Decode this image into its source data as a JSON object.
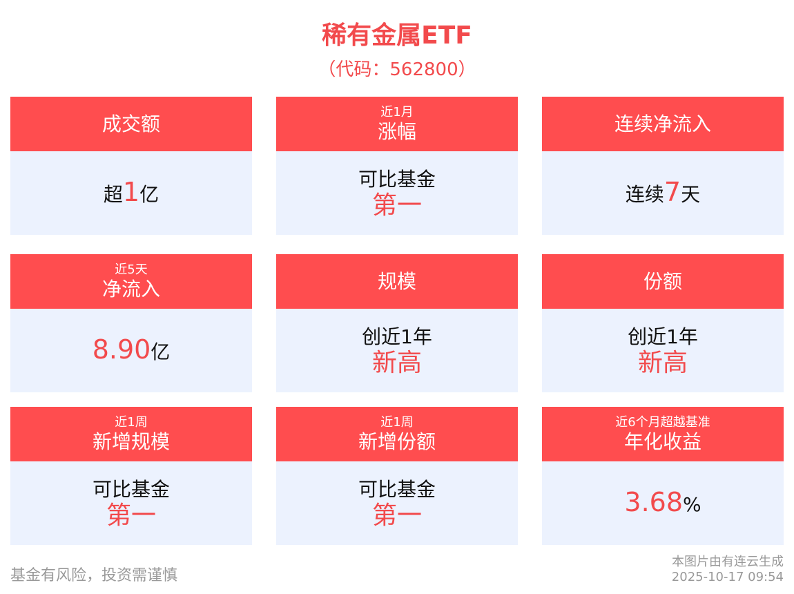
{
  "header": {
    "title": "稀有金属ETF",
    "code": "（代码：562800）"
  },
  "colors": {
    "accent": "#ff4d4f",
    "panel": "#ecf2fe",
    "highlight": "#f24a4c"
  },
  "cards": [
    {
      "sub": "",
      "title": "成交额",
      "pre": "超",
      "num": "1",
      "post": "亿",
      "line1": "",
      "line2": ""
    },
    {
      "sub": "近1月",
      "title": "涨幅",
      "pre": "",
      "num": "",
      "post": "",
      "line1": "可比基金",
      "line2": "第一"
    },
    {
      "sub": "",
      "title": "连续净流入",
      "pre": "连续",
      "num": "7",
      "post": "天",
      "line1": "",
      "line2": ""
    },
    {
      "sub": "近5天",
      "title": "净流入",
      "pre": "",
      "num": "8.90",
      "post": "亿",
      "line1": "",
      "line2": ""
    },
    {
      "sub": "",
      "title": "规模",
      "pre": "",
      "num": "",
      "post": "",
      "line1": "创近1年",
      "line2": "新高"
    },
    {
      "sub": "",
      "title": "份额",
      "pre": "",
      "num": "",
      "post": "",
      "line1": "创近1年",
      "line2": "新高"
    },
    {
      "sub": "近1周",
      "title": "新增规模",
      "pre": "",
      "num": "",
      "post": "",
      "line1": "可比基金",
      "line2": "第一"
    },
    {
      "sub": "近1周",
      "title": "新增份额",
      "pre": "",
      "num": "",
      "post": "",
      "line1": "可比基金",
      "line2": "第一"
    },
    {
      "sub": "近6个月超越基准",
      "title": "年化收益",
      "pre": "",
      "num": "3.68",
      "post": "%",
      "line1": "",
      "line2": ""
    }
  ],
  "footer": {
    "disclaimer": "基金有风险，投资需谨慎",
    "source": "本图片由有连云生成",
    "timestamp": "2025-10-17 09:54"
  }
}
